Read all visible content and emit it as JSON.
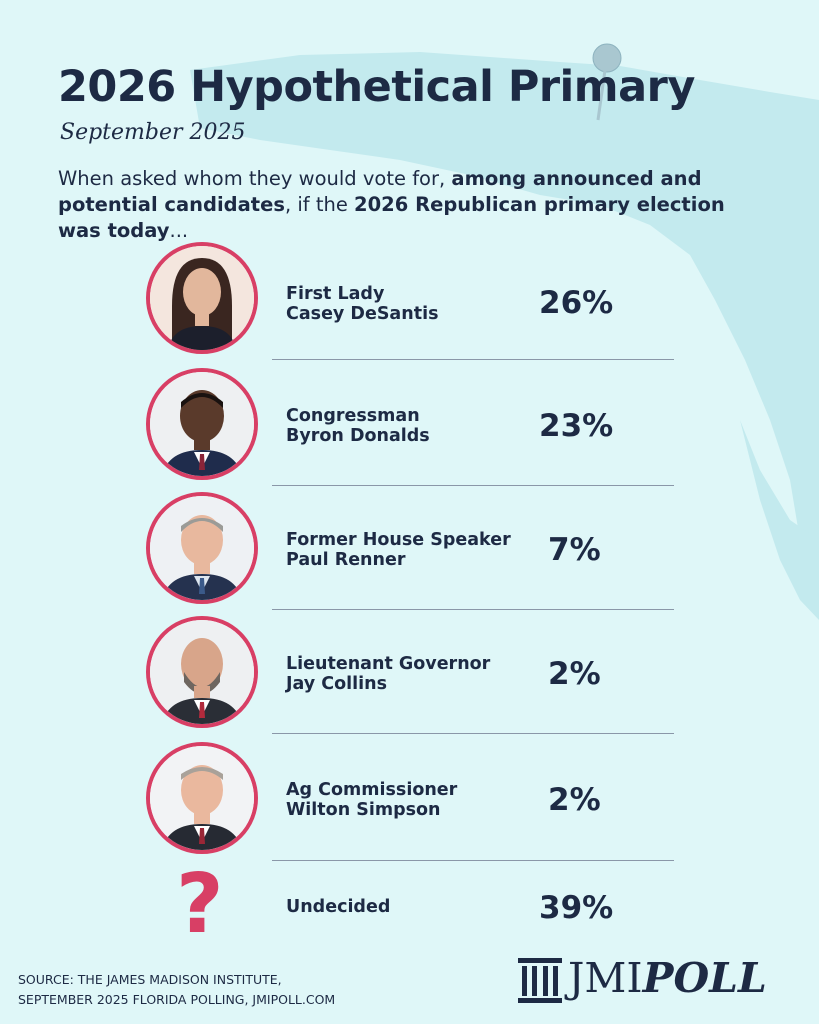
{
  "header": {
    "title": "2026 Hypothetical Primary",
    "date": "September 2025",
    "intro_parts": [
      "When asked whom they would vote for, ",
      "among announced and potential candidates",
      ", if the ",
      "2026 Republican primary election was today",
      "..."
    ]
  },
  "candidates": [
    {
      "title": "First Lady",
      "name": "Casey DeSantis",
      "percent": "26%",
      "value": 26
    },
    {
      "title": "Congressman",
      "name": "Byron Donalds",
      "percent": "23%",
      "value": 23
    },
    {
      "title": "Former House Speaker",
      "name": "Paul Renner",
      "percent": "7%",
      "value": 7
    },
    {
      "title": "Lieutenant Governor",
      "name": "Jay Collins",
      "percent": "2%",
      "value": 2
    },
    {
      "title": "Ag Commissioner",
      "name": "Wilton Simpson",
      "percent": "2%",
      "value": 2
    }
  ],
  "undecided": {
    "label": "Undecided",
    "percent": "39%",
    "value": 39,
    "symbol": "?"
  },
  "source": {
    "line1": "SOURCE: THE JAMES MADISON INSTITUTE,",
    "line2": "SEPTEMBER 2025 FLORIDA POLLING, JMIPOLL.COM"
  },
  "logo": {
    "prefix": "JMI",
    "suffix": "POLL",
    "icon": "column-pillar-icon"
  },
  "colors": {
    "background": "#dff7f8",
    "map": "#c3eaee",
    "text": "#1d2a44",
    "accent": "#d83f65",
    "divider": "#8a97a8"
  }
}
